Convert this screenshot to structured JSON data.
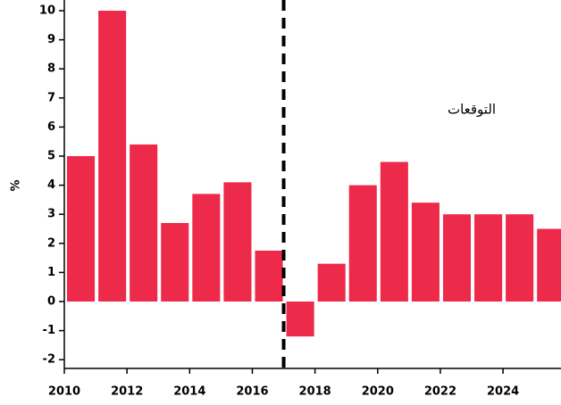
{
  "chart_data": {
    "type": "bar",
    "y_label": "%",
    "annotation": {
      "text": "التوقعات",
      "x": 2023,
      "y": 6.6
    },
    "forecast_start": 2017,
    "x": [
      2010,
      2011,
      2012,
      2013,
      2014,
      2015,
      2016,
      2017,
      2018,
      2019,
      2020,
      2021,
      2022,
      2023,
      2024,
      2025
    ],
    "values": [
      5.0,
      10.0,
      5.4,
      2.7,
      3.7,
      4.1,
      1.75,
      -1.2,
      1.3,
      4.0,
      4.8,
      3.4,
      3.0,
      3.0,
      3.0,
      2.5
    ],
    "color": "#ee2a4a",
    "xlim": [
      2010,
      2025.85
    ],
    "xticks": [
      2010,
      2012,
      2014,
      2016,
      2018,
      2020,
      2022,
      2024
    ],
    "ylim": [
      -2.3,
      10
    ],
    "yticks": [
      -2,
      -1,
      0,
      1,
      2,
      3,
      4,
      5,
      6,
      7,
      8,
      9,
      10
    ]
  }
}
